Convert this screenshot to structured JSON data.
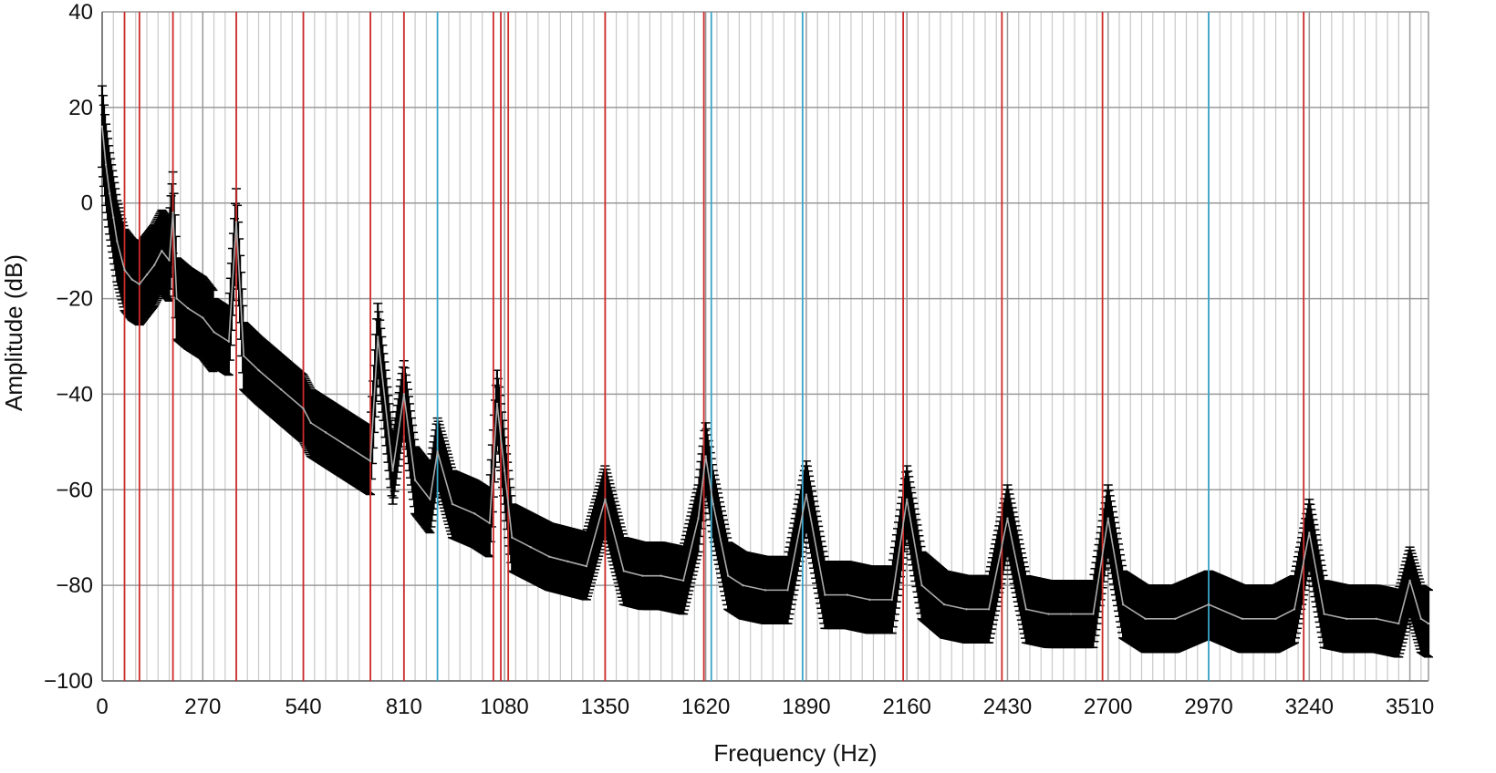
{
  "chart_data": {
    "type": "line",
    "xlabel": "Frequency (Hz)",
    "ylabel": "Amplitude (dB)",
    "xlim": [
      0,
      3560
    ],
    "ylim": [
      -100,
      40
    ],
    "x_ticks": [
      0,
      270,
      540,
      810,
      1080,
      1350,
      1620,
      1890,
      2160,
      2430,
      2700,
      2970,
      3240,
      3510
    ],
    "x_tick_labels": [
      "0",
      "270",
      "540",
      "810",
      "1080",
      "1350",
      "1620",
      "1890",
      "2160",
      "2430",
      "2700",
      "2970",
      "3240",
      "3510"
    ],
    "y_ticks": [
      -100,
      -80,
      -60,
      -40,
      -20,
      0,
      20,
      40
    ],
    "y_tick_labels": [
      "−100",
      "−80",
      "−60",
      "−40",
      "−20",
      "0",
      "20",
      "40"
    ],
    "minor_grid_step_x": 30,
    "grid": true,
    "legend": "none",
    "colors": {
      "mean_line": "#aaaaaa",
      "error_bars": "#000000",
      "red_markers": "#cc2a2a",
      "cyan_markers": "#3aa5c8",
      "grid_major": "#999999",
      "grid_minor": "#c8c8c8"
    },
    "red_marker_frequencies": [
      60,
      100,
      190,
      360,
      540,
      720,
      810,
      1050,
      1070,
      1090,
      1350,
      1615,
      2150,
      2415,
      2685,
      3225
    ],
    "cyan_marker_frequencies": [
      900,
      1635,
      1880,
      2970
    ],
    "series": [
      {
        "style": "mean-with-error-bars",
        "x": [
          0,
          10,
          20,
          30,
          40,
          60,
          80,
          100,
          120,
          140,
          160,
          180,
          190,
          200,
          230,
          270,
          300,
          340,
          360,
          380,
          420,
          480,
          540,
          560,
          600,
          660,
          720,
          740,
          780,
          810,
          840,
          880,
          900,
          940,
          1000,
          1040,
          1060,
          1080,
          1100,
          1150,
          1200,
          1250,
          1300,
          1350,
          1400,
          1450,
          1500,
          1560,
          1600,
          1620,
          1640,
          1680,
          1720,
          1780,
          1840,
          1890,
          1940,
          2000,
          2060,
          2120,
          2160,
          2200,
          2260,
          2320,
          2380,
          2430,
          2480,
          2540,
          2600,
          2660,
          2700,
          2740,
          2800,
          2880,
          2970,
          3060,
          3150,
          3200,
          3240,
          3280,
          3340,
          3420,
          3480,
          3510,
          3540,
          3560
        ],
        "y": [
          16,
          8,
          2,
          -3,
          -8,
          -14,
          -16,
          -17,
          -15,
          -13,
          -10,
          -12,
          -2,
          -20,
          -22,
          -24,
          -27,
          -29,
          -4,
          -32,
          -35,
          -39,
          -43,
          -46,
          -48,
          -51,
          -54,
          -28,
          -56,
          -40,
          -58,
          -62,
          -52,
          -63,
          -65,
          -67,
          -42,
          -56,
          -70,
          -72,
          -74,
          -75,
          -76,
          -62,
          -77,
          -78,
          -78,
          -79,
          -66,
          -53,
          -63,
          -78,
          -80,
          -81,
          -81,
          -61,
          -82,
          -82,
          -83,
          -83,
          -62,
          -80,
          -84,
          -85,
          -85,
          -66,
          -85,
          -86,
          -86,
          -86,
          -66,
          -84,
          -87,
          -87,
          -84,
          -87,
          -87,
          -85,
          -69,
          -86,
          -87,
          -87,
          -88,
          -79,
          -87,
          -88
        ],
        "error": 7
      }
    ]
  }
}
